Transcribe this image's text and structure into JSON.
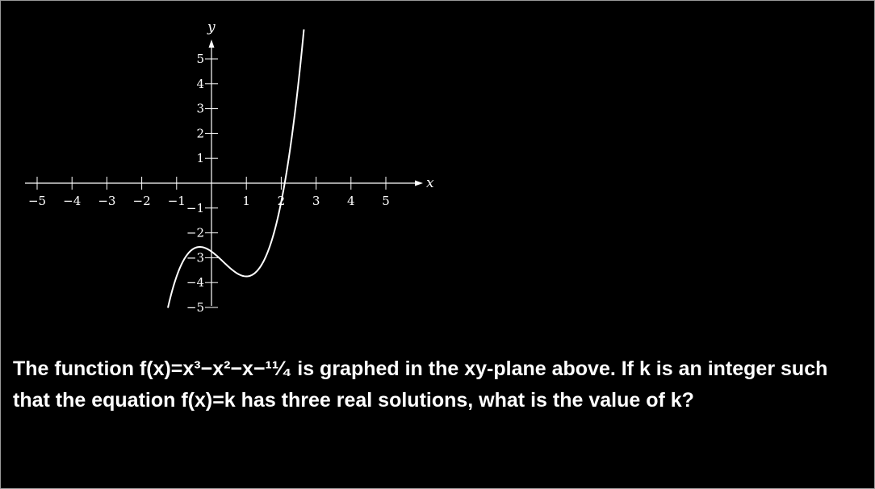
{
  "question": "The function f(x)=x³−x²−x−¹¹⁄₄ is graphed in the xy-plane above. If k is an integer such that the equation f(x)=k has three real solutions, what is the value of k?",
  "chart_data": {
    "type": "line",
    "function": "f(x)=x^3-x^2-x-11/4",
    "xlabel": "x",
    "ylabel": "y",
    "xlim": [
      -5,
      5
    ],
    "ylim": [
      -5,
      5
    ],
    "x_tick_labels": [
      "−5",
      "−4",
      "−3",
      "−2",
      "−1",
      "1",
      "2",
      "3",
      "4",
      "5"
    ],
    "y_tick_labels": [
      "5",
      "4",
      "3",
      "2",
      "1",
      "−1",
      "−2",
      "−3",
      "−4",
      "−5"
    ],
    "curve_x_range": [
      -1.25,
      2.65
    ],
    "grid": false,
    "line_color": "#ffffff"
  }
}
